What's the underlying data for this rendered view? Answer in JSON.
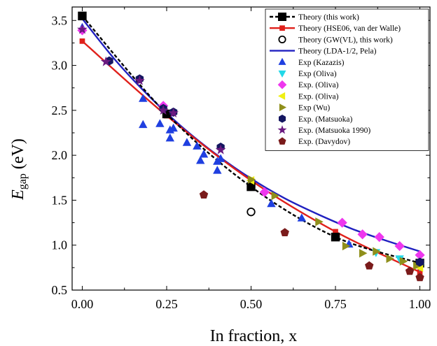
{
  "chart_data": {
    "type": "scatter",
    "title": "",
    "xlabel": "In fraction, x",
    "ylabel_main": "E",
    "ylabel_sub": "gap",
    "ylabel_unit": " (eV)",
    "xlim": [
      -0.03,
      1.03
    ],
    "ylim": [
      0.5,
      3.65
    ],
    "xticks": [
      0.0,
      0.25,
      0.5,
      0.75,
      1.0
    ],
    "xtick_labels": [
      "0.00",
      "0.25",
      "0.50",
      "0.75",
      "1.00"
    ],
    "yticks": [
      0.5,
      1.0,
      1.5,
      2.0,
      2.5,
      3.0,
      3.5
    ],
    "ytick_labels": [
      "0.5",
      "1.0",
      "1.5",
      "2.0",
      "2.5",
      "3.0",
      "3.5"
    ],
    "grid": false,
    "legend_position": "top-right",
    "series": [
      {
        "name": "Theory (this work)",
        "kind": "line+marker",
        "marker": "square",
        "color": "#000000",
        "dash": "5,3",
        "x": [
          0.0,
          0.25,
          0.5,
          0.75,
          1.0
        ],
        "y": [
          3.55,
          2.46,
          1.65,
          1.09,
          0.8
        ]
      },
      {
        "name": "Theory (HSE06, van der Walle)",
        "kind": "line+marker",
        "marker": "square-small",
        "color": "#e0201b",
        "x": [
          0.0,
          0.25,
          0.5,
          0.75,
          1.0
        ],
        "y": [
          3.27,
          2.44,
          1.72,
          1.15,
          0.7
        ]
      },
      {
        "name": "Theory (GW(VL), this work)",
        "kind": "marker",
        "marker": "circle-open",
        "color": "#000000",
        "x": [
          0.5
        ],
        "y": [
          1.37
        ]
      },
      {
        "name": "Theory (LDA-1/2, Pela)",
        "kind": "line",
        "color": "#2020c0",
        "x": [
          0.0,
          0.1,
          0.2,
          0.3,
          0.4,
          0.5,
          0.6,
          0.7,
          0.8,
          0.9,
          1.0
        ],
        "y": [
          3.52,
          3.05,
          2.65,
          2.3,
          2.0,
          1.74,
          1.52,
          1.34,
          1.18,
          1.05,
          0.93
        ]
      },
      {
        "name": "Exp (Kazazis)",
        "kind": "marker",
        "marker": "triangle-up",
        "color": "#1f3fe0",
        "x": [
          0.0,
          0.18,
          0.18,
          0.23,
          0.26,
          0.26,
          0.27,
          0.31,
          0.34,
          0.35,
          0.36,
          0.4,
          0.4,
          0.41,
          0.56,
          0.65,
          0.79
        ],
        "y": [
          3.42,
          2.63,
          2.34,
          2.35,
          2.28,
          2.19,
          2.3,
          2.14,
          2.1,
          1.94,
          2.01,
          1.93,
          1.83,
          1.96,
          1.46,
          1.3,
          1.01
        ]
      },
      {
        "name": "Exp (Oliva)",
        "kind": "marker",
        "marker": "triangle-down",
        "color": "#21d8e8",
        "x": [
          0.87,
          0.94,
          1.0
        ],
        "y": [
          0.92,
          0.85,
          0.76
        ]
      },
      {
        "name": "Exp. (Oliva)",
        "kind": "marker",
        "marker": "diamond",
        "color": "#ee37ee",
        "x": [
          0.0,
          0.24,
          0.54,
          0.77,
          0.83,
          0.88,
          0.94,
          1.0
        ],
        "y": [
          3.39,
          2.55,
          1.59,
          1.25,
          1.12,
          1.09,
          0.99,
          0.89
        ]
      },
      {
        "name": "Exp. (Oliva)",
        "kind": "marker",
        "marker": "triangle-left",
        "color": "#efef12",
        "x": [
          0.5,
          1.0
        ],
        "y": [
          1.72,
          0.75
        ]
      },
      {
        "name": "Exp (Wu)",
        "kind": "marker",
        "marker": "triangle-right",
        "color": "#8f8f1b",
        "x": [
          0.5,
          0.57,
          0.7,
          0.78,
          0.83,
          0.87,
          0.91,
          0.95,
          0.99
        ],
        "y": [
          1.73,
          1.55,
          1.26,
          0.99,
          0.91,
          0.93,
          0.85,
          0.82,
          0.77
        ]
      },
      {
        "name": "Exp. (Matsuoka)",
        "kind": "marker",
        "marker": "hexagon",
        "color": "#141660",
        "x": [
          0.08,
          0.17,
          0.24,
          0.27,
          0.41,
          1.0
        ],
        "y": [
          3.05,
          2.85,
          2.52,
          2.48,
          2.09,
          0.81
        ]
      },
      {
        "name": "Exp. (Matsuoka 1990)",
        "kind": "marker",
        "marker": "star",
        "color": "#6a1a80",
        "x": [
          0.0,
          0.07,
          0.17,
          0.24,
          0.27,
          0.41
        ],
        "y": [
          3.4,
          3.04,
          2.83,
          2.5,
          2.47,
          2.06
        ]
      },
      {
        "name": "Exp. (Davydov)",
        "kind": "marker",
        "marker": "pentagon",
        "color": "#7a1b1b",
        "x": [
          0.36,
          0.6,
          0.85,
          0.97,
          1.0
        ],
        "y": [
          1.56,
          1.14,
          0.77,
          0.71,
          0.64
        ]
      }
    ]
  }
}
